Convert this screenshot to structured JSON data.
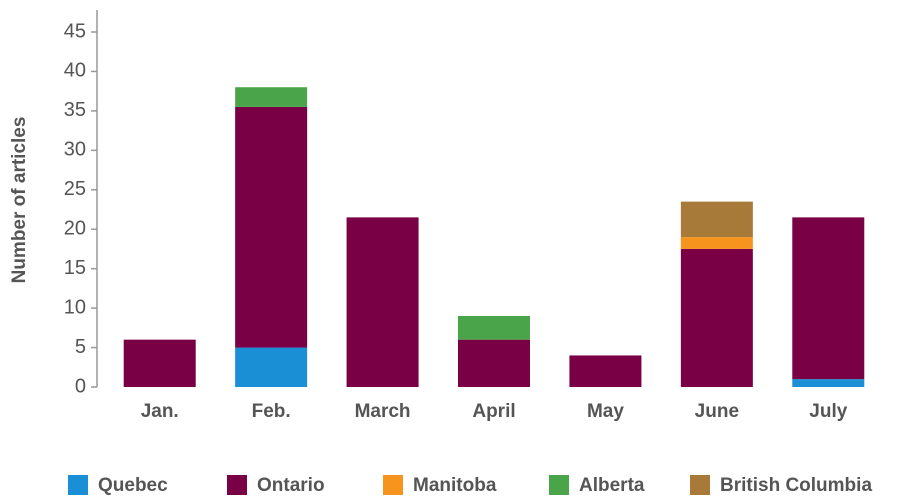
{
  "chart_data": {
    "type": "stacked_bar",
    "y_axis_label": "Number of articles",
    "categories": [
      "Jan.",
      "Feb.",
      "March",
      "April",
      "May",
      "June",
      "July"
    ],
    "series": [
      {
        "name": "Quebec",
        "color": "#1a8fd6",
        "values": [
          0,
          5,
          0,
          0,
          0,
          0,
          1
        ]
      },
      {
        "name": "Ontario",
        "color": "#7a0045",
        "values": [
          6,
          30.5,
          21.5,
          6,
          4,
          17.5,
          20.5
        ]
      },
      {
        "name": "Manitoba",
        "color": "#f7941d",
        "values": [
          0,
          0,
          0,
          0,
          0,
          1.5,
          0
        ]
      },
      {
        "name": "Alberta",
        "color": "#4aa54a",
        "values": [
          0,
          2.5,
          0,
          3,
          0,
          0,
          0
        ]
      },
      {
        "name": "British Columbia",
        "color": "#a87a3a",
        "values": [
          0,
          0,
          0,
          0,
          0,
          4.5,
          0
        ]
      }
    ],
    "ylim": [
      0,
      45
    ],
    "yticks": [
      0,
      5,
      10,
      15,
      20,
      25,
      30,
      35,
      40,
      45
    ],
    "legend": "bottom"
  }
}
